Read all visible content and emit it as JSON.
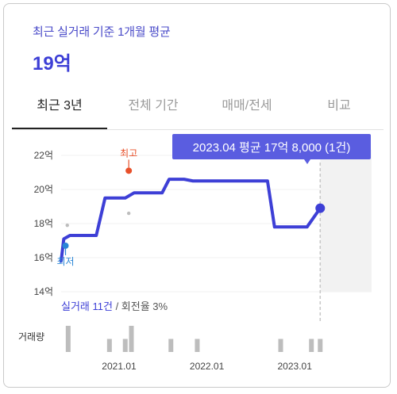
{
  "header": {
    "subtitle": "최근 실거래 기준 1개월 평균",
    "price": "19억"
  },
  "tabs": [
    {
      "label": "최근 3년",
      "active": true
    },
    {
      "label": "전체 기간",
      "active": false
    },
    {
      "label": "매매/전세",
      "active": false
    },
    {
      "label": "비교",
      "active": false
    }
  ],
  "tooltip": "2023.04 평균 17억 8,000 (1건)",
  "colors": {
    "accent": "#3d3fd6",
    "tooltip_bg": "#5a5de0",
    "high": "#e8502a",
    "low": "#2a86d6"
  },
  "labels": {
    "high": "최고",
    "low": "최저",
    "volume": "거래량"
  },
  "summary": {
    "trades": "실거래 11건",
    "sep": " / ",
    "turnover": "회전율 3%"
  },
  "chart_data": {
    "type": "line",
    "y_unit": "억",
    "ylim": [
      14,
      22
    ],
    "yticks": [
      "22억",
      "20억",
      "18억",
      "16억",
      "14억"
    ],
    "xticks": [
      "2021.01",
      "2022.01",
      "2023.01"
    ],
    "series": [
      {
        "values": [
          [
            2020.35,
            15.8
          ],
          [
            2020.38,
            17.1
          ],
          [
            2020.45,
            17.3
          ],
          [
            2020.55,
            17.3
          ],
          [
            2020.75,
            17.3
          ],
          [
            2020.85,
            19.5
          ],
          [
            2020.95,
            19.5
          ],
          [
            2021.08,
            19.5
          ],
          [
            2021.18,
            19.8
          ],
          [
            2021.5,
            19.8
          ],
          [
            2021.58,
            20.6
          ],
          [
            2021.75,
            20.6
          ],
          [
            2021.85,
            20.5
          ],
          [
            2022.5,
            20.5
          ],
          [
            2022.7,
            20.5
          ],
          [
            2022.78,
            17.8
          ],
          [
            2022.9,
            17.8
          ],
          [
            2023.15,
            17.8
          ],
          [
            2023.3,
            18.9
          ]
        ]
      }
    ],
    "markers": [
      {
        "label": "최고",
        "x": 2021.12,
        "y": 21.1
      },
      {
        "label": "최저",
        "x": 2020.4,
        "y": 16.7
      },
      {
        "label": "latest",
        "x": 2023.3,
        "y": 18.9
      }
    ],
    "grey_points": [
      [
        2020.42,
        17.9
      ],
      [
        2021.12,
        18.6
      ]
    ],
    "volume": [
      {
        "x": 2020.43,
        "v": 3
      },
      {
        "x": 2020.9,
        "v": 1.5
      },
      {
        "x": 2021.08,
        "v": 1.5
      },
      {
        "x": 2021.15,
        "v": 3
      },
      {
        "x": 2021.6,
        "v": 1.5
      },
      {
        "x": 2021.9,
        "v": 1.5
      },
      {
        "x": 2022.85,
        "v": 1.5
      },
      {
        "x": 2023.2,
        "v": 1.5
      },
      {
        "x": 2023.3,
        "v": 1.5
      }
    ]
  }
}
